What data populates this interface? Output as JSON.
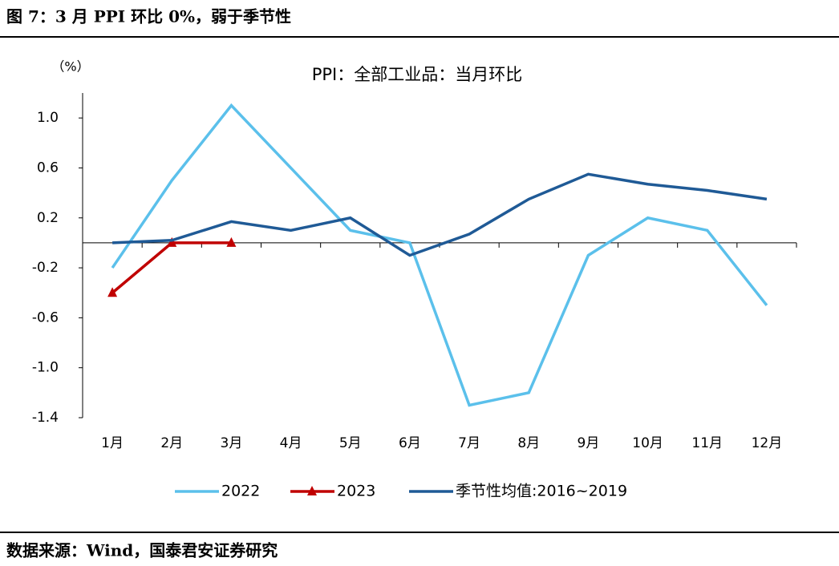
{
  "caption": "图 7：3 月 PPI 环比 0%，弱于季节性",
  "source": "数据来源：Wind，国泰君安证券研究",
  "chart_data": {
    "type": "line",
    "title": "PPI：全部工业品：当月环比",
    "y_label": "（%）",
    "categories": [
      "1月",
      "2月",
      "3月",
      "4月",
      "5月",
      "6月",
      "7月",
      "8月",
      "9月",
      "10月",
      "11月",
      "12月"
    ],
    "series": [
      {
        "name": "2022",
        "color": "#5bc0eb",
        "values": [
          -0.2,
          0.5,
          1.1,
          0.6,
          0.1,
          0.0,
          -1.3,
          -1.2,
          -0.1,
          0.2,
          0.1,
          -0.5
        ]
      },
      {
        "name": "2023",
        "color": "#c00000",
        "marker": "triangle",
        "values": [
          -0.4,
          0.0,
          0.0,
          null,
          null,
          null,
          null,
          null,
          null,
          null,
          null,
          null
        ]
      },
      {
        "name": "季节性均值:2016~2019",
        "color": "#1f5a96",
        "values": [
          0.0,
          0.02,
          0.17,
          0.1,
          0.2,
          -0.1,
          0.07,
          0.35,
          0.55,
          0.47,
          0.42,
          0.35
        ]
      }
    ],
    "ylim": [
      -1.4,
      1.2
    ],
    "yticks": [
      {
        "value": 1,
        "label": "1.0"
      },
      0.6,
      0.2,
      -0.2,
      -0.6,
      {
        "value": -1,
        "label": "-1.0"
      },
      -1.4
    ],
    "legend": "bottom"
  }
}
